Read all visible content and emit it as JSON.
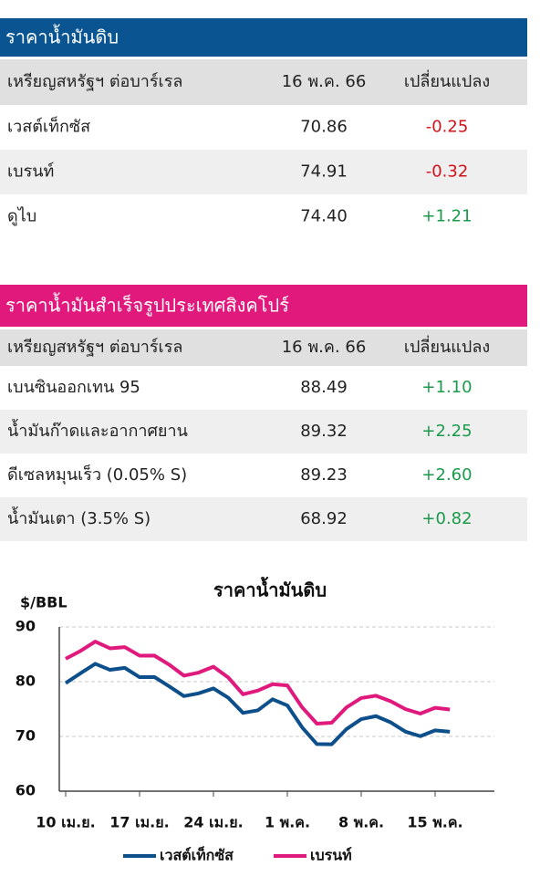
{
  "crude_table": {
    "title": "ราคาน้ำมันดิบ",
    "header": [
      "เหรียญสหรัฐฯ ต่อบาร์เรล",
      "16 พ.ค. 66",
      "เปลี่ยนแปลง"
    ],
    "rows": [
      [
        "เวสต์เท็กซัส",
        "70.86",
        "-0.25"
      ],
      [
        "เบรนท์",
        "74.91",
        "-0.32"
      ],
      [
        "ดูไบ",
        "74.40",
        "+1.21"
      ]
    ]
  },
  "refined_table": {
    "title": "ราคาน้ำมันสำเร็จรูปประเทศสิงคโปร์",
    "header": [
      "เหรียญสหรัฐฯ ต่อบาร์เรล",
      "16 พ.ค. 66",
      "เปลี่ยนแปลง"
    ],
    "rows": [
      [
        "เบนซินออกเทน 95",
        "88.49",
        "+1.10"
      ],
      [
        "น้ำมันก๊าดและอากาศยาน",
        "89.32",
        "+2.25"
      ],
      [
        "ดีเซลหมุนเร็ว (0.05% S)",
        "89.23",
        "+2.60"
      ],
      [
        "น้ำมันเตา (3.5% S)",
        "68.92",
        "+0.82"
      ]
    ]
  },
  "chart_data": {
    "type": "line",
    "title": "ราคาน้ำมันดิบ",
    "y_label": "$/BBL",
    "categories": [
      "10 เม.ย.",
      null,
      null,
      null,
      null,
      "17 เม.ย.",
      null,
      null,
      null,
      null,
      "24 เม.ย.",
      null,
      null,
      null,
      null,
      "1 พ.ค.",
      null,
      null,
      null,
      null,
      "8 พ.ค.",
      null,
      null,
      null,
      null,
      "15 พ.ค.",
      null
    ],
    "series": [
      {
        "name": "เวสต์เท็กซัส",
        "color": "#0d4f8b",
        "values": [
          79.74,
          81.53,
          83.26,
          82.16,
          82.52,
          80.83,
          80.86,
          79.16,
          77.37,
          77.87,
          78.76,
          77.07,
          74.3,
          74.76,
          76.78,
          75.66,
          71.66,
          68.6,
          68.56,
          71.34,
          73.16,
          73.71,
          72.56,
          70.87,
          70.04,
          71.11,
          70.86
        ]
      },
      {
        "name": "เบรนท์",
        "color": "#e0197d",
        "values": [
          84.18,
          85.61,
          87.33,
          86.09,
          86.31,
          84.76,
          84.77,
          83.12,
          81.1,
          81.66,
          82.73,
          80.77,
          77.69,
          78.37,
          79.54,
          79.31,
          75.32,
          72.33,
          72.5,
          75.3,
          77.01,
          77.44,
          76.41,
          74.98,
          74.17,
          75.23,
          74.91
        ]
      }
    ],
    "ylim": [
      60,
      90
    ],
    "yticks": [
      60,
      70,
      80,
      90
    ],
    "grid": true
  }
}
